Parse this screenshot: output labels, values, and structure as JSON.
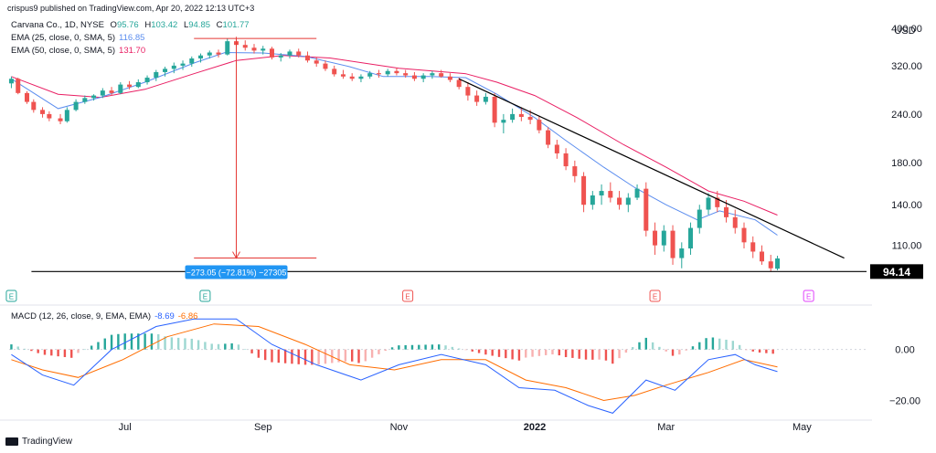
{
  "header": {
    "publisher": "crispus9 published on TradingView.com, Apr 20, 2022 12:13 UTC+3"
  },
  "legend": {
    "symbol": "Carvana Co., 1D, NYSE",
    "ohlc": {
      "o_label": "O",
      "o": "95.76",
      "h_label": "H",
      "h": "103.42",
      "l_label": "L",
      "l": "94.85",
      "c_label": "C",
      "c": "101.77"
    },
    "ema25": {
      "label": "EMA (25, close, 0, SMA, 5)",
      "value": "116.85"
    },
    "ema50": {
      "label": "EMA (50, close, 0, SMA, 5)",
      "value": "131.70"
    }
  },
  "macd": {
    "label": "MACD (12, 26, close, 9, EMA, EMA)",
    "macd_value": "-8.69",
    "signal_value": "-6.86"
  },
  "price_scale": {
    "currency": "USD",
    "last_price_badge": "94.14",
    "measure_label": "−273.05 (−72.81%) −27305"
  },
  "branding": {
    "name": "TradingView"
  },
  "colors": {
    "up": "#26a69a",
    "down": "#ef5350",
    "ema25": "#5b8def",
    "ema50": "#e91e63",
    "macd_line": "#2962ff",
    "signal_line": "#ff6d00",
    "hist_up": "#26a69a",
    "hist_down": "#ef5350",
    "trend": "#000000",
    "measure": "#e53935",
    "badge_bg": "#000000",
    "label_bg": "#2196f3"
  },
  "chart_data": {
    "type": "candlestick",
    "x_ticks": [
      "Jul",
      "Sep",
      "Nov",
      "2022",
      "Mar",
      "May"
    ],
    "x_tick_dates": [
      "2021-07-01",
      "2021-09-01",
      "2021-11-01",
      "2022-01-01",
      "2022-03-01",
      "2022-05-01"
    ],
    "x_range": [
      "2021-05-10",
      "2022-05-30"
    ],
    "y_ticks": [
      94.14,
      110,
      140,
      180,
      240,
      320,
      400
    ],
    "y_tick_labels": [
      "94.14",
      "110.00",
      "140.00",
      "180.00",
      "240.00",
      "320.00",
      "400.00"
    ],
    "y_range": [
      86,
      415
    ],
    "y_scale": "log",
    "grid": false,
    "series": [
      {
        "name": "EMA (25, close, 0, SMA, 5)",
        "points": [
          [
            "2021-05-11",
            296
          ],
          [
            "2021-06-01",
            248
          ],
          [
            "2021-06-20",
            265
          ],
          [
            "2021-07-10",
            290
          ],
          [
            "2021-08-01",
            325
          ],
          [
            "2021-08-15",
            346
          ],
          [
            "2021-09-01",
            345
          ],
          [
            "2021-09-20",
            338
          ],
          [
            "2021-10-10",
            318
          ],
          [
            "2021-10-25",
            300
          ],
          [
            "2021-11-15",
            300
          ],
          [
            "2021-12-01",
            298
          ],
          [
            "2021-12-15",
            270
          ],
          [
            "2022-01-01",
            235
          ],
          [
            "2022-01-15",
            205
          ],
          [
            "2022-02-01",
            175
          ],
          [
            "2022-02-15",
            155
          ],
          [
            "2022-03-01",
            140
          ],
          [
            "2022-03-15",
            128
          ],
          [
            "2022-03-25",
            135
          ],
          [
            "2022-04-10",
            128
          ],
          [
            "2022-04-20",
            116.85
          ]
        ]
      },
      {
        "name": "EMA (50, close, 0, SMA, 5)",
        "points": [
          [
            "2021-05-11",
            300
          ],
          [
            "2021-06-01",
            270
          ],
          [
            "2021-06-20",
            265
          ],
          [
            "2021-07-10",
            278
          ],
          [
            "2021-08-01",
            305
          ],
          [
            "2021-08-20",
            330
          ],
          [
            "2021-09-10",
            340
          ],
          [
            "2021-10-01",
            335
          ],
          [
            "2021-11-01",
            315
          ],
          [
            "2021-12-01",
            305
          ],
          [
            "2021-12-15",
            290
          ],
          [
            "2022-01-01",
            268
          ],
          [
            "2022-01-20",
            235
          ],
          [
            "2022-02-10",
            200
          ],
          [
            "2022-03-01",
            175
          ],
          [
            "2022-03-20",
            152
          ],
          [
            "2022-04-05",
            143
          ],
          [
            "2022-04-20",
            131.7
          ]
        ]
      },
      {
        "name": "trendline",
        "points": [
          [
            "2021-11-28",
            296
          ],
          [
            "2022-05-20",
            102
          ]
        ]
      },
      {
        "name": "support",
        "points": [
          [
            "2021-05-20",
            94.14
          ],
          [
            "2022-05-30",
            94.14
          ]
        ]
      }
    ],
    "candles": [
      [
        "2021-05-11",
        288,
        300,
        280,
        296
      ],
      [
        "2021-05-14",
        296,
        298,
        270,
        272
      ],
      [
        "2021-05-18",
        272,
        275,
        255,
        258
      ],
      [
        "2021-05-21",
        258,
        262,
        242,
        246
      ],
      [
        "2021-05-25",
        246,
        250,
        235,
        240
      ],
      [
        "2021-05-28",
        240,
        244,
        230,
        234
      ],
      [
        "2021-06-02",
        234,
        240,
        226,
        230
      ],
      [
        "2021-06-05",
        230,
        250,
        228,
        246
      ],
      [
        "2021-06-09",
        246,
        262,
        244,
        258
      ],
      [
        "2021-06-13",
        258,
        268,
        255,
        264
      ],
      [
        "2021-06-17",
        264,
        270,
        260,
        268
      ],
      [
        "2021-06-21",
        268,
        280,
        264,
        276
      ],
      [
        "2021-06-25",
        276,
        282,
        268,
        272
      ],
      [
        "2021-06-29",
        272,
        290,
        270,
        286
      ],
      [
        "2021-07-03",
        286,
        292,
        278,
        282
      ],
      [
        "2021-07-07",
        282,
        295,
        280,
        290
      ],
      [
        "2021-07-11",
        290,
        302,
        286,
        298
      ],
      [
        "2021-07-15",
        298,
        312,
        292,
        308
      ],
      [
        "2021-07-19",
        308,
        318,
        300,
        314
      ],
      [
        "2021-07-23",
        314,
        326,
        306,
        320
      ],
      [
        "2021-07-27",
        320,
        330,
        312,
        324
      ],
      [
        "2021-07-31",
        324,
        338,
        318,
        334
      ],
      [
        "2021-08-04",
        334,
        344,
        326,
        340
      ],
      [
        "2021-08-08",
        340,
        350,
        334,
        346
      ],
      [
        "2021-08-12",
        346,
        352,
        336,
        342
      ],
      [
        "2021-08-16",
        342,
        376,
        340,
        370
      ],
      [
        "2021-08-20",
        370,
        380,
        358,
        362
      ],
      [
        "2021-08-24",
        362,
        372,
        350,
        356
      ],
      [
        "2021-08-28",
        356,
        364,
        344,
        350
      ],
      [
        "2021-09-01",
        350,
        360,
        342,
        354
      ],
      [
        "2021-09-05",
        354,
        358,
        332,
        336
      ],
      [
        "2021-09-09",
        336,
        345,
        328,
        340
      ],
      [
        "2021-09-13",
        340,
        352,
        334,
        348
      ],
      [
        "2021-09-17",
        348,
        354,
        336,
        340
      ],
      [
        "2021-09-21",
        340,
        348,
        326,
        330
      ],
      [
        "2021-09-25",
        330,
        336,
        318,
        324
      ],
      [
        "2021-09-29",
        324,
        330,
        310,
        314
      ],
      [
        "2021-10-03",
        314,
        320,
        300,
        304
      ],
      [
        "2021-10-07",
        304,
        312,
        296,
        300
      ],
      [
        "2021-10-11",
        300,
        306,
        292,
        296
      ],
      [
        "2021-10-15",
        296,
        304,
        290,
        300
      ],
      [
        "2021-10-19",
        300,
        310,
        296,
        306
      ],
      [
        "2021-10-23",
        306,
        312,
        298,
        304
      ],
      [
        "2021-10-27",
        304,
        314,
        300,
        310
      ],
      [
        "2021-10-31",
        310,
        316,
        302,
        306
      ],
      [
        "2021-11-04",
        306,
        312,
        298,
        302
      ],
      [
        "2021-11-08",
        302,
        308,
        292,
        296
      ],
      [
        "2021-11-12",
        296,
        306,
        290,
        302
      ],
      [
        "2021-11-16",
        302,
        310,
        296,
        306
      ],
      [
        "2021-11-20",
        306,
        312,
        298,
        300
      ],
      [
        "2021-11-24",
        300,
        306,
        290,
        294
      ],
      [
        "2021-11-28",
        294,
        298,
        278,
        282
      ],
      [
        "2021-12-02",
        282,
        290,
        260,
        268
      ],
      [
        "2021-12-06",
        268,
        276,
        252,
        258
      ],
      [
        "2021-12-10",
        258,
        272,
        254,
        266
      ],
      [
        "2021-12-14",
        266,
        272,
        222,
        228
      ],
      [
        "2021-12-18",
        228,
        240,
        214,
        232
      ],
      [
        "2021-12-22",
        232,
        248,
        228,
        240
      ],
      [
        "2021-12-26",
        240,
        250,
        230,
        236
      ],
      [
        "2021-12-30",
        236,
        246,
        226,
        232
      ],
      [
        "2022-01-03",
        232,
        238,
        214,
        218
      ],
      [
        "2022-01-07",
        218,
        222,
        196,
        200
      ],
      [
        "2022-01-11",
        200,
        206,
        184,
        190
      ],
      [
        "2022-01-15",
        190,
        196,
        172,
        176
      ],
      [
        "2022-01-19",
        176,
        182,
        160,
        166
      ],
      [
        "2022-01-23",
        166,
        170,
        134,
        140
      ],
      [
        "2022-01-27",
        140,
        152,
        136,
        148
      ],
      [
        "2022-01-31",
        148,
        158,
        140,
        152
      ],
      [
        "2022-02-04",
        152,
        160,
        142,
        146
      ],
      [
        "2022-02-08",
        146,
        152,
        136,
        140
      ],
      [
        "2022-02-12",
        140,
        150,
        134,
        146
      ],
      [
        "2022-02-16",
        146,
        158,
        144,
        154
      ],
      [
        "2022-02-20",
        154,
        160,
        116,
        120
      ],
      [
        "2022-02-24",
        120,
        126,
        104,
        110
      ],
      [
        "2022-02-28",
        110,
        124,
        106,
        120
      ],
      [
        "2022-03-04",
        120,
        124,
        98,
        102
      ],
      [
        "2022-03-08",
        102,
        112,
        96,
        108
      ],
      [
        "2022-03-12",
        108,
        126,
        104,
        122
      ],
      [
        "2022-03-16",
        122,
        140,
        118,
        136
      ],
      [
        "2022-03-20",
        136,
        150,
        132,
        146
      ],
      [
        "2022-03-24",
        146,
        152,
        134,
        138
      ],
      [
        "2022-03-28",
        138,
        144,
        126,
        130
      ],
      [
        "2022-04-01",
        130,
        136,
        118,
        122
      ],
      [
        "2022-04-05",
        122,
        126,
        108,
        112
      ],
      [
        "2022-04-09",
        112,
        116,
        102,
        106
      ],
      [
        "2022-04-13",
        106,
        110,
        98,
        100
      ],
      [
        "2022-04-17",
        100,
        104,
        94,
        96
      ],
      [
        "2022-04-20",
        95.76,
        103.42,
        94.85,
        101.77
      ]
    ],
    "macd_panel": {
      "y_ticks": [
        0,
        -20
      ],
      "y_tick_labels": [
        "0.00",
        "−20.00"
      ],
      "y_range": [
        -27,
        16
      ],
      "macd": [
        [
          "2021-05-11",
          -2
        ],
        [
          "2021-05-25",
          -10
        ],
        [
          "2021-06-08",
          -14
        ],
        [
          "2021-06-25",
          0
        ],
        [
          "2021-07-15",
          9
        ],
        [
          "2021-08-01",
          12
        ],
        [
          "2021-08-20",
          12
        ],
        [
          "2021-09-05",
          2
        ],
        [
          "2021-09-25",
          -6
        ],
        [
          "2021-10-15",
          -12
        ],
        [
          "2021-11-01",
          -6
        ],
        [
          "2021-11-20",
          -2
        ],
        [
          "2021-12-10",
          -6
        ],
        [
          "2021-12-25",
          -15
        ],
        [
          "2022-01-10",
          -16
        ],
        [
          "2022-01-25",
          -22
        ],
        [
          "2022-02-05",
          -25
        ],
        [
          "2022-02-20",
          -12
        ],
        [
          "2022-03-05",
          -16
        ],
        [
          "2022-03-20",
          -4
        ],
        [
          "2022-04-01",
          -2
        ],
        [
          "2022-04-10",
          -6
        ],
        [
          "2022-04-20",
          -8.69
        ]
      ],
      "signal": [
        [
          "2021-05-11",
          -4
        ],
        [
          "2021-05-25",
          -8
        ],
        [
          "2021-06-10",
          -11
        ],
        [
          "2021-06-30",
          -4
        ],
        [
          "2021-07-20",
          5
        ],
        [
          "2021-08-10",
          10
        ],
        [
          "2021-08-30",
          9
        ],
        [
          "2021-09-20",
          2
        ],
        [
          "2021-10-10",
          -6
        ],
        [
          "2021-10-30",
          -8
        ],
        [
          "2021-11-20",
          -4
        ],
        [
          "2021-12-10",
          -4
        ],
        [
          "2021-12-28",
          -12
        ],
        [
          "2022-01-15",
          -15
        ],
        [
          "2022-02-01",
          -20
        ],
        [
          "2022-02-15",
          -18
        ],
        [
          "2022-03-01",
          -14
        ],
        [
          "2022-03-20",
          -9
        ],
        [
          "2022-04-05",
          -4
        ],
        [
          "2022-04-20",
          -6.86
        ]
      ]
    }
  }
}
